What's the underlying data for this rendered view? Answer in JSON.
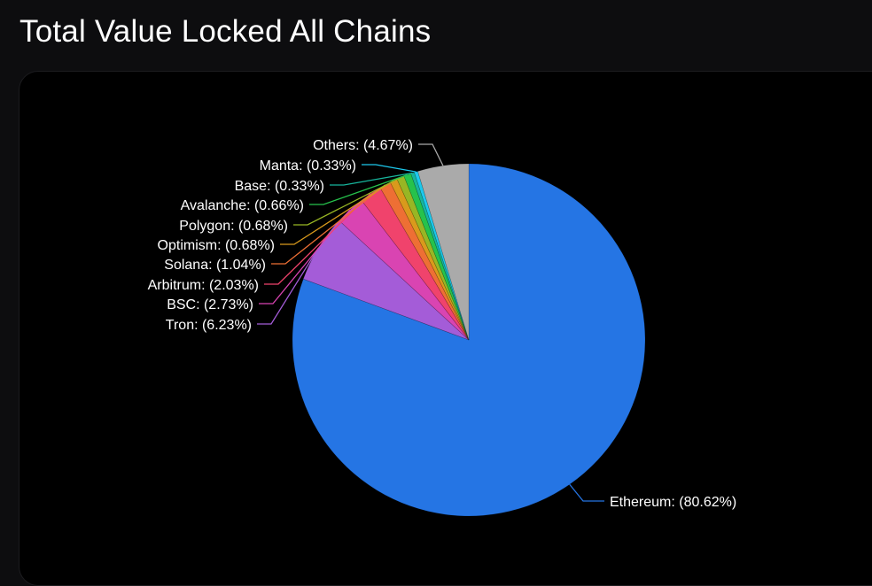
{
  "header": {
    "title": "Total Value Locked All Chains"
  },
  "chart_data": {
    "type": "pie",
    "title": "Total Value Locked All Chains",
    "start": "top, clockwise",
    "slices": [
      {
        "name": "Ethereum",
        "value": 80.62,
        "label": "Ethereum: (80.62%)",
        "color": "#2575e4"
      },
      {
        "name": "Tron",
        "value": 6.23,
        "label": "Tron: (6.23%)",
        "color": "#a45cd8"
      },
      {
        "name": "BSC",
        "value": 2.73,
        "label": "BSC: (2.73%)",
        "color": "#d944b2"
      },
      {
        "name": "Arbitrum",
        "value": 2.03,
        "label": "Arbitrum: (2.03%)",
        "color": "#f0436c"
      },
      {
        "name": "Solana",
        "value": 1.04,
        "label": "Solana: (1.04%)",
        "color": "#ee6f34"
      },
      {
        "name": "Optimism",
        "value": 0.68,
        "label": "Optimism: (0.68%)",
        "color": "#d99a1c"
      },
      {
        "name": "Polygon",
        "value": 0.68,
        "label": "Polygon: (0.68%)",
        "color": "#98b624"
      },
      {
        "name": "Avalanche",
        "value": 0.66,
        "label": "Avalanche: (0.66%)",
        "color": "#26c24c"
      },
      {
        "name": "Base",
        "value": 0.33,
        "label": "Base: (0.33%)",
        "color": "#17b59c"
      },
      {
        "name": "Manta",
        "value": 0.33,
        "label": "Manta: (0.33%)",
        "color": "#1dc8ec"
      },
      {
        "name": "Others",
        "value": 4.67,
        "label": "Others: (4.67%)",
        "color": "#aaaaaa"
      }
    ]
  }
}
